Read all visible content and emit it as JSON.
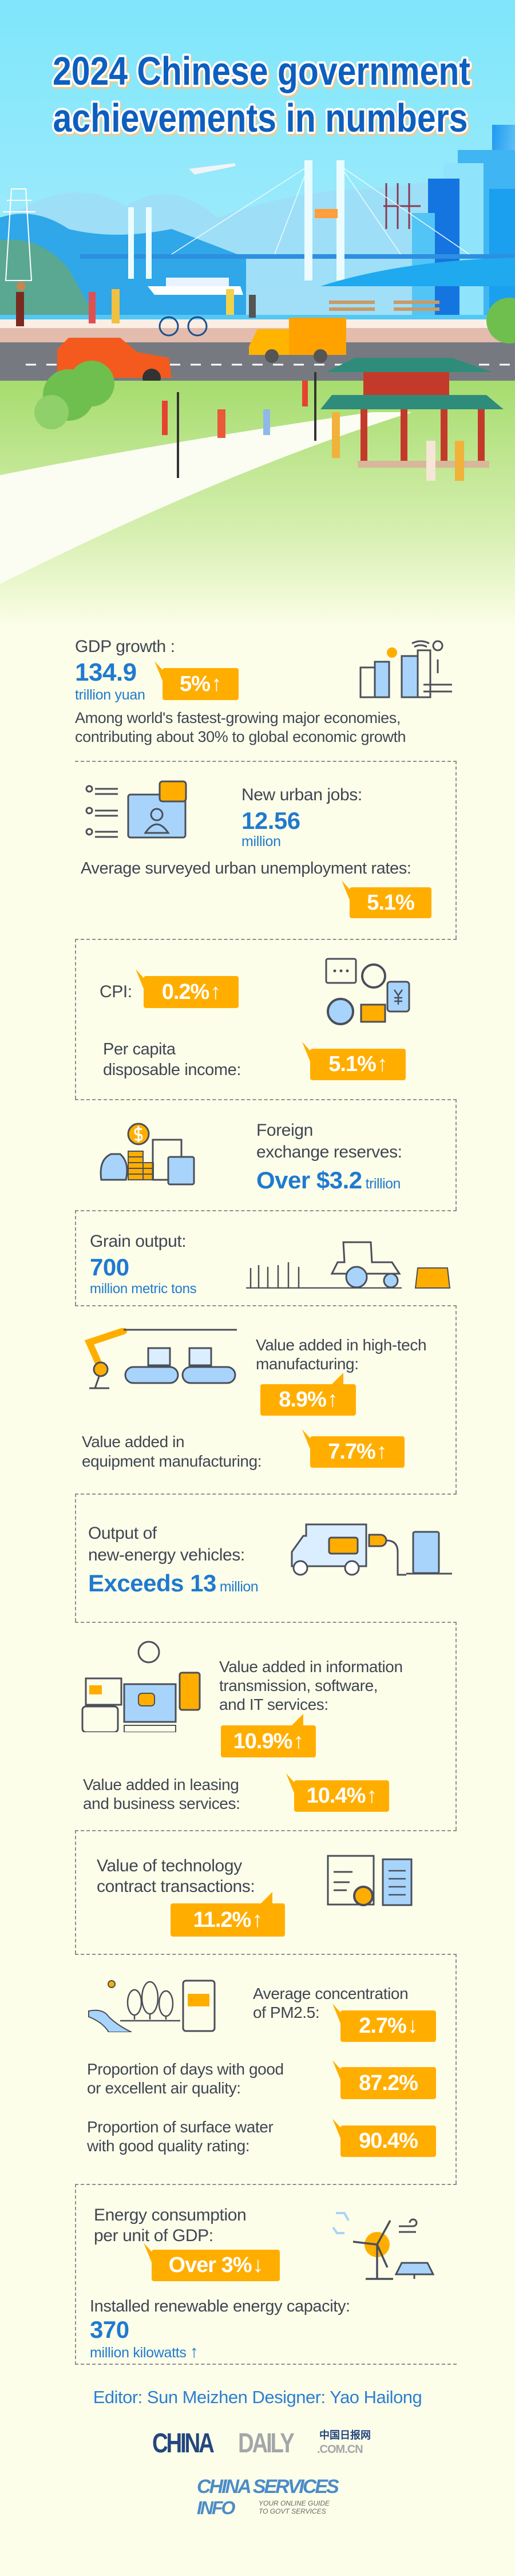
{
  "title": {
    "line1": "2024 Chinese government",
    "line2": "achievements in numbers"
  },
  "colors": {
    "accent_blue": "#1f7ad0",
    "badge_orange": "#ffae00",
    "text": "#3f4653",
    "background": "#fdfee9",
    "title_blue": "#0a5fbf"
  },
  "gdp": {
    "label": "GDP growth :",
    "value": "134.9",
    "unit": "trillion yuan",
    "badge": "5%",
    "trend": "up",
    "desc_line1": "Among world's fastest-growing major economies,",
    "desc_line2": "contributing about 30% to global economic growth",
    "icon": "smart-city-icon"
  },
  "jobs": {
    "label": "New urban jobs:",
    "value": "12.56",
    "unit": "million",
    "unemployment_label": "Average surveyed urban unemployment rates:",
    "unemployment_badge": "5.1%",
    "icon": "job-recruitment-icon"
  },
  "cpi": {
    "label": "CPI:",
    "badge": "0.2%",
    "trend": "up",
    "income_line1": "Per capita",
    "income_line2": "disposable income:",
    "income_badge": "5.1%",
    "income_trend": "up",
    "icon": "consumer-wallet-icon"
  },
  "forex": {
    "line1": "Foreign",
    "line2": "exchange reserves:",
    "value": "Over $3.2",
    "unit": "trillion",
    "icon": "money-calculator-icon"
  },
  "grain": {
    "label": "Grain output:",
    "value": "700",
    "unit": "million metric tons",
    "icon": "tractor-field-icon"
  },
  "manufacturing": {
    "hightech_line1": "Value added in high-tech",
    "hightech_line2": "manufacturing:",
    "hightech_badge": "8.9%",
    "equip_line1": "Value added in",
    "equip_line2": "equipment manufacturing:",
    "equip_badge": "7.7%",
    "icon": "robot-assembly-line-icon"
  },
  "nev": {
    "line1": "Output of",
    "line2": "new-energy vehicles:",
    "value": "Exceeds 13",
    "unit": "million",
    "icon": "electric-vehicle-charging-icon"
  },
  "it": {
    "line1": "Value added in information",
    "line2": "transmission, software,",
    "line3": "and IT services:",
    "badge": "10.9%",
    "leasing_line1": "Value added in leasing",
    "leasing_line2": "and business services:",
    "leasing_badge": "10.4%",
    "icon": "digital-devices-icon"
  },
  "tech": {
    "line1": "Value of technology",
    "line2": "contract transactions:",
    "badge": "11.2%",
    "icon": "contract-gear-icon"
  },
  "environment": {
    "pm_line1": "Average concentration",
    "pm_line2": "of PM2.5:",
    "pm_badge": "2.7%",
    "pm_trend": "down",
    "air_line1": "Proportion of days with good",
    "air_line2": "or excellent air quality:",
    "air_badge": "87.2%",
    "water_line1": "Proportion of surface water",
    "water_line2": "with good quality rating:",
    "water_badge": "90.4%",
    "icon": "nature-monitoring-icon"
  },
  "energy": {
    "line1": "Energy consumption",
    "line2": "per unit of GDP:",
    "badge": "Over 3%",
    "trend": "down",
    "renew_label": "Installed renewable energy capacity:",
    "renew_value": "370",
    "renew_unit": "million kilowatts",
    "renew_trend": "up",
    "icon": "wind-solar-icon"
  },
  "credits": {
    "text": "Editor: Sun Meizhen  Designer: Yao Hailong"
  },
  "logos": {
    "chinadaily_a": "CHINA",
    "chinadaily_b": "DAILY",
    "chinadaily_cn": "中国日报网",
    "chinadaily_com": ".COM.CN",
    "services_line1": "CHINA SERVICES",
    "services_line2": "INFO",
    "services_tag1": "YOUR ONLINE GUIDE",
    "services_tag2": "TO GOVT SERVICES"
  }
}
